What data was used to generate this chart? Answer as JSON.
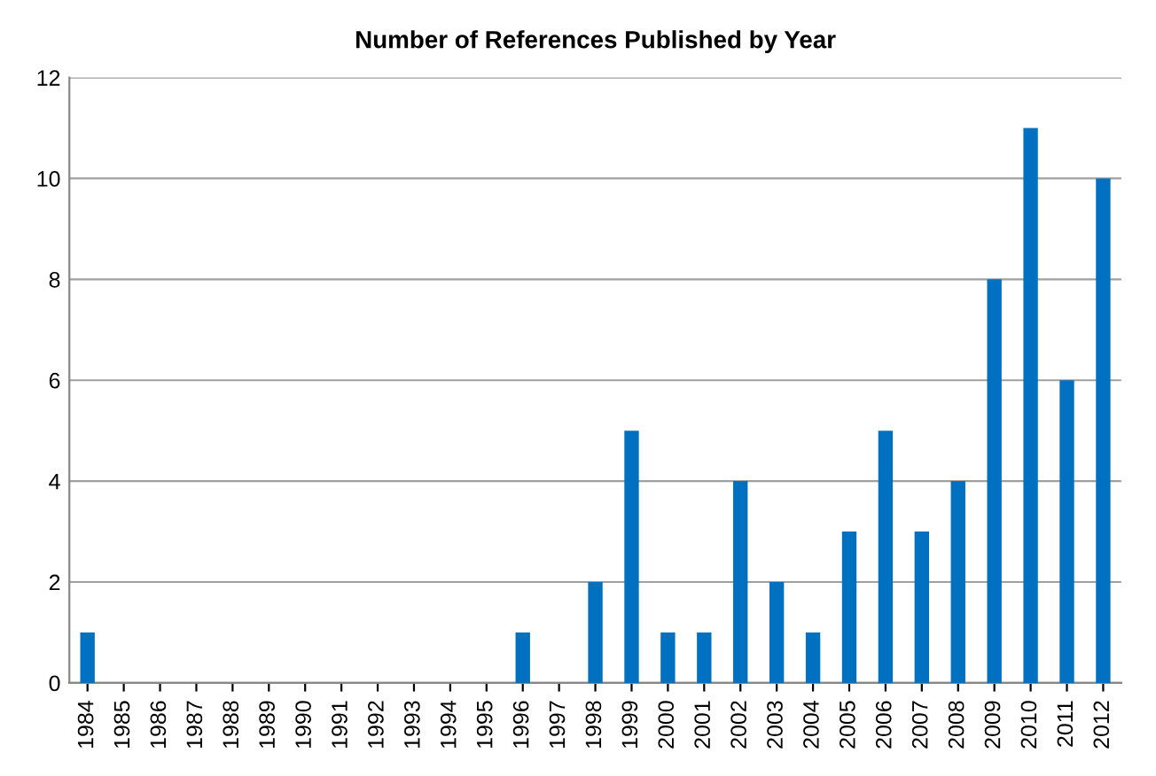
{
  "chart_data": {
    "type": "bar",
    "title": "Number of References Published by Year",
    "categories": [
      "1984",
      "1985",
      "1986",
      "1987",
      "1988",
      "1989",
      "1990",
      "1991",
      "1992",
      "1993",
      "1994",
      "1995",
      "1996",
      "1997",
      "1998",
      "1999",
      "2000",
      "2001",
      "2002",
      "2003",
      "2004",
      "2005",
      "2006",
      "2007",
      "2008",
      "2009",
      "2010",
      "2011",
      "2012"
    ],
    "values": [
      1,
      0,
      0,
      0,
      0,
      0,
      0,
      0,
      0,
      0,
      0,
      0,
      1,
      0,
      2,
      5,
      1,
      1,
      4,
      2,
      1,
      3,
      5,
      3,
      4,
      8,
      11,
      6,
      10
    ],
    "color": "#0070c0",
    "ylim": [
      0,
      12
    ],
    "yticks": [
      0,
      2,
      4,
      6,
      8,
      10,
      12
    ],
    "grid": "y",
    "legend": false
  }
}
